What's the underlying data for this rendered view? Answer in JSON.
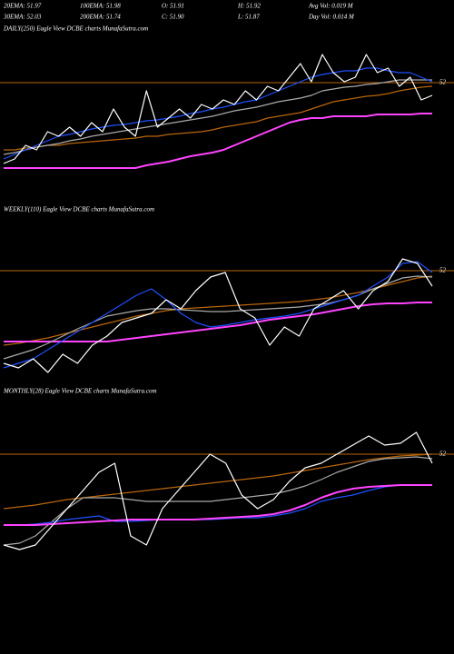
{
  "header": {
    "rows": [
      [
        "20EMA: 51.97",
        "100EMA: 51.98",
        "O: 51.91",
        "H: 51.92",
        "Avg Vol: 0.019  M"
      ],
      [
        "30EMA: 52.03",
        "200EMA: 51.74",
        "C: 51.90",
        "L: 51.87",
        "Day Vol: 0.014  M"
      ]
    ]
  },
  "chart_data": [
    {
      "type": "line",
      "title": "DAILY(250) Eagle  View  DCBE charts MunafaSutra.com",
      "ylim": [
        50.91,
        52.51
      ],
      "yticks": [
        52
      ],
      "grid": true,
      "series": [
        {
          "color": "#b8660b",
          "values": [
            51.26,
            51.26,
            51.28,
            51.29,
            51.31,
            51.31,
            51.33,
            51.34,
            51.35,
            51.36,
            51.37,
            51.38,
            51.39,
            51.41,
            51.41,
            51.43,
            51.44,
            51.45,
            51.46,
            51.48,
            51.51,
            51.53,
            51.55,
            51.57,
            51.61,
            51.63,
            51.65,
            51.67,
            51.71,
            51.75,
            51.79,
            51.81,
            51.83,
            51.85,
            51.86,
            51.88,
            51.91,
            51.93,
            51.95,
            51.96
          ]
        },
        {
          "color": "#ff44ff",
          "values": [
            51.06,
            51.06,
            51.06,
            51.06,
            51.06,
            51.06,
            51.06,
            51.06,
            51.06,
            51.06,
            51.06,
            51.06,
            51.06,
            51.09,
            51.11,
            51.13,
            51.16,
            51.19,
            51.21,
            51.23,
            51.26,
            51.31,
            51.36,
            51.41,
            51.46,
            51.51,
            51.56,
            51.59,
            51.61,
            51.61,
            51.63,
            51.63,
            51.63,
            51.63,
            51.65,
            51.65,
            51.65,
            51.65,
            51.66,
            51.66
          ]
        },
        {
          "color": "#aaaaaa",
          "values": [
            51.21,
            51.23,
            51.26,
            51.29,
            51.31,
            51.33,
            51.36,
            51.38,
            51.41,
            51.43,
            51.45,
            51.47,
            51.49,
            51.51,
            51.53,
            51.55,
            51.57,
            51.59,
            51.61,
            51.63,
            51.66,
            51.69,
            51.71,
            51.73,
            51.76,
            51.79,
            51.81,
            51.83,
            51.86,
            51.91,
            51.93,
            51.95,
            51.96,
            51.98,
            51.99,
            52.01,
            52.03,
            52.03,
            52.03,
            52.03
          ]
        },
        {
          "color": "#1e50ff",
          "values": [
            51.16,
            51.21,
            51.26,
            51.31,
            51.36,
            51.41,
            51.43,
            51.46,
            51.49,
            51.51,
            51.53,
            51.54,
            51.56,
            51.58,
            51.59,
            51.61,
            51.63,
            51.66,
            51.68,
            51.71,
            51.73,
            51.76,
            51.79,
            51.81,
            51.86,
            51.91,
            51.96,
            52.01,
            52.06,
            52.09,
            52.11,
            52.13,
            52.13,
            52.16,
            52.16,
            52.13,
            52.11,
            52.11,
            52.06,
            52.01
          ]
        },
        {
          "color": "#ffffff",
          "values": [
            51.11,
            51.16,
            51.31,
            51.26,
            51.46,
            51.41,
            51.51,
            51.41,
            51.56,
            51.46,
            51.71,
            51.51,
            51.41,
            51.91,
            51.51,
            51.61,
            51.71,
            51.61,
            51.76,
            51.71,
            51.81,
            51.76,
            51.91,
            51.81,
            51.96,
            51.91,
            52.06,
            52.21,
            52.01,
            52.31,
            52.11,
            52.01,
            52.06,
            52.31,
            52.11,
            52.16,
            51.96,
            52.06,
            51.81,
            51.86
          ]
        }
      ]
    },
    {
      "type": "line",
      "title": "WEEKLY(110) Eagle  View  DCBE charts MunafaSutra.com",
      "ylim": [
        50.78,
        52.48
      ],
      "yticks": [
        52
      ],
      "grid": true,
      "series": [
        {
          "color": "#b8660b",
          "values": [
            51.18,
            51.2,
            51.23,
            51.26,
            51.3,
            51.34,
            51.38,
            51.42,
            51.46,
            51.5,
            51.53,
            51.56,
            51.58,
            51.59,
            51.6,
            51.61,
            51.62,
            51.63,
            51.64,
            51.65,
            51.66,
            51.68,
            51.7,
            51.73,
            51.76,
            51.8,
            51.84,
            51.88,
            51.92,
            51.94
          ]
        },
        {
          "color": "#ff44ff",
          "values": [
            51.22,
            51.22,
            51.22,
            51.22,
            51.22,
            51.22,
            51.22,
            51.22,
            51.24,
            51.26,
            51.28,
            51.3,
            51.32,
            51.34,
            51.36,
            51.38,
            51.4,
            51.43,
            51.46,
            51.48,
            51.5,
            51.52,
            51.55,
            51.58,
            51.61,
            51.63,
            51.64,
            51.64,
            51.65,
            51.65
          ]
        },
        {
          "color": "#aaaaaa",
          "values": [
            51.03,
            51.08,
            51.13,
            51.2,
            51.28,
            51.36,
            51.43,
            51.5,
            51.53,
            51.56,
            51.58,
            51.58,
            51.57,
            51.56,
            51.55,
            51.55,
            51.56,
            51.57,
            51.58,
            51.59,
            51.6,
            51.62,
            51.64,
            51.68,
            51.73,
            51.8,
            51.86,
            51.92,
            51.94,
            51.93
          ]
        },
        {
          "color": "#1e50ff",
          "values": [
            50.93,
            50.98,
            51.03,
            51.13,
            51.23,
            51.33,
            51.43,
            51.53,
            51.63,
            51.73,
            51.8,
            51.68,
            51.53,
            51.43,
            51.38,
            51.4,
            51.43,
            51.46,
            51.48,
            51.5,
            51.53,
            51.58,
            51.63,
            51.68,
            51.73,
            51.83,
            51.93,
            52.08,
            52.1,
            51.98
          ]
        },
        {
          "color": "#ffffff",
          "values": [
            50.98,
            50.93,
            51.03,
            50.88,
            51.08,
            50.98,
            51.18,
            51.28,
            51.43,
            51.48,
            51.53,
            51.68,
            51.58,
            51.78,
            51.93,
            51.98,
            51.58,
            51.48,
            51.18,
            51.38,
            51.28,
            51.58,
            51.68,
            51.78,
            51.58,
            51.78,
            51.88,
            52.13,
            52.08,
            51.83
          ]
        }
      ]
    },
    {
      "type": "line",
      "title": "MONTHLY(28) Eagle  View  DCBE charts MunafaSutra.com",
      "ylim": [
        50.8,
        52.5
      ],
      "yticks": [
        52
      ],
      "grid": true,
      "series": [
        {
          "color": "#b8660b",
          "values": [
            51.4,
            51.42,
            51.44,
            51.47,
            51.5,
            51.52,
            51.54,
            51.56,
            51.58,
            51.6,
            51.62,
            51.64,
            51.66,
            51.68,
            51.7,
            51.72,
            51.74,
            51.76,
            51.79,
            51.82,
            51.85,
            51.88,
            51.91,
            51.94,
            51.96,
            51.98,
            51.99,
            52
          ]
        },
        {
          "color": "#aaaaaa",
          "values": [
            51,
            51.02,
            51.1,
            51.25,
            51.4,
            51.52,
            51.52,
            51.52,
            51.5,
            51.48,
            51.48,
            51.48,
            51.48,
            51.48,
            51.5,
            51.52,
            51.54,
            51.56,
            51.6,
            51.65,
            51.72,
            51.8,
            51.86,
            51.92,
            51.95,
            51.96,
            51.97,
            51.95
          ]
        },
        {
          "color": "#1e50ff",
          "values": [
            51.22,
            51.22,
            51.23,
            51.25,
            51.28,
            51.3,
            51.32,
            51.26,
            51.26,
            51.27,
            51.28,
            51.28,
            51.28,
            51.28,
            51.29,
            51.3,
            51.3,
            51.32,
            51.35,
            51.4,
            51.48,
            51.52,
            51.55,
            51.6,
            51.64,
            51.66,
            51.66,
            51.66
          ]
        },
        {
          "color": "#ff44ff",
          "values": [
            51.22,
            51.22,
            51.22,
            51.23,
            51.24,
            51.25,
            51.26,
            51.27,
            51.28,
            51.28,
            51.28,
            51.28,
            51.28,
            51.29,
            51.3,
            51.31,
            51.32,
            51.34,
            51.38,
            51.44,
            51.52,
            51.58,
            51.62,
            51.64,
            51.65,
            51.66,
            51.66,
            51.66
          ]
        },
        {
          "color": "#ffffff",
          "values": [
            51,
            50.95,
            51,
            51.2,
            51.4,
            51.6,
            51.8,
            51.9,
            51.1,
            51,
            51.4,
            51.6,
            51.8,
            52,
            51.9,
            51.55,
            51.4,
            51.5,
            51.7,
            51.85,
            51.9,
            52,
            52.1,
            52.2,
            52.1,
            52.12,
            52.24,
            51.9
          ]
        }
      ]
    }
  ]
}
